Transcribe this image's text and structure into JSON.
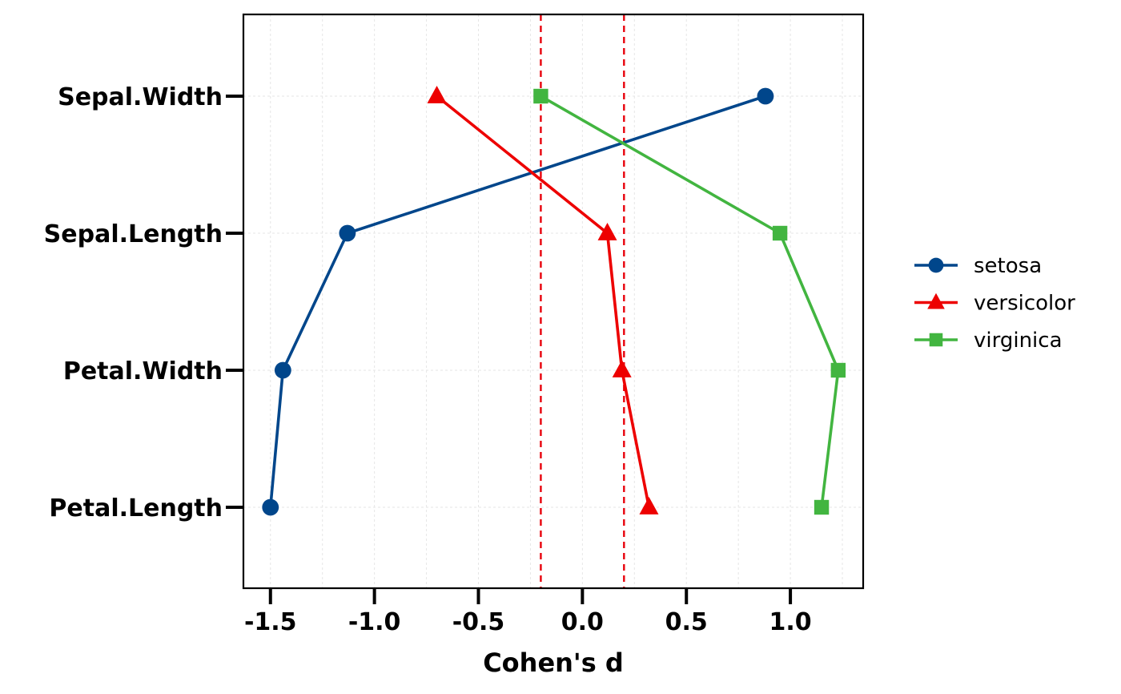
{
  "chart_data": {
    "type": "line",
    "xlabel": "Cohen's d",
    "ylabel": "",
    "xlim": [
      -1.63,
      1.35
    ],
    "x_ticks": [
      -1.5,
      -1.0,
      -0.5,
      0.0,
      0.5,
      1.0
    ],
    "x_tick_labels": [
      "-1.5",
      "-1.0",
      "-0.5",
      "0.0",
      "0.5",
      "1.0"
    ],
    "categories": [
      "Petal.Length",
      "Petal.Width",
      "Sepal.Length",
      "Sepal.Width"
    ],
    "reference_lines": [
      -0.2,
      0.2
    ],
    "reference_line_color": "#e8000b",
    "grid": true,
    "legend_position": "right",
    "series": [
      {
        "name": "setosa",
        "color": "#00468b",
        "marker": "circle",
        "values": {
          "Sepal.Width": 0.88,
          "Sepal.Length": -1.13,
          "Petal.Width": -1.44,
          "Petal.Length": -1.5
        }
      },
      {
        "name": "versicolor",
        "color": "#ed0000",
        "marker": "triangle",
        "values": {
          "Sepal.Width": -0.7,
          "Sepal.Length": 0.12,
          "Petal.Width": 0.19,
          "Petal.Length": 0.32
        }
      },
      {
        "name": "virginica",
        "color": "#42b540",
        "marker": "square",
        "values": {
          "Sepal.Width": -0.2,
          "Sepal.Length": 0.95,
          "Petal.Width": 1.23,
          "Petal.Length": 1.15
        }
      }
    ],
    "series_order": [
      "Sepal.Width",
      "Sepal.Length",
      "Petal.Width",
      "Petal.Length"
    ]
  }
}
